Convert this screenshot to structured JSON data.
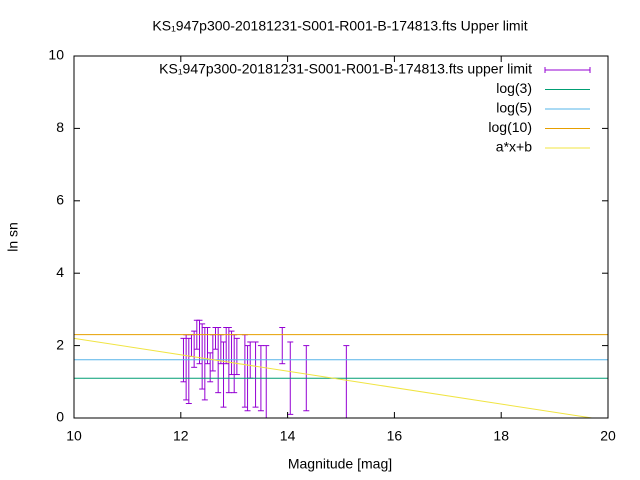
{
  "chart_data": {
    "type": "errorbar",
    "title": "KS₁947p300-20181231-S001-R001-B-174813.fts Upper limit",
    "xlabel": "Magnitude [mag]",
    "ylabel": "ln sn",
    "xlim": [
      10,
      20
    ],
    "xticks": [
      10,
      12,
      14,
      16,
      18,
      20
    ],
    "ylim": [
      0,
      10
    ],
    "yticks": [
      0,
      2,
      4,
      6,
      8,
      10
    ],
    "legend": "top-right",
    "series": [
      {
        "name": "KS₁947p300-20181231-S001-R001-B-174813.fts upper limit",
        "color": "#9400d3",
        "style": "errorbar",
        "x": [
          12.05,
          12.1,
          12.15,
          12.2,
          12.25,
          12.3,
          12.35,
          12.4,
          12.45,
          12.5,
          12.55,
          12.6,
          12.65,
          12.7,
          12.75,
          12.8,
          12.85,
          12.9,
          12.95,
          13.0,
          13.05,
          13.2,
          13.25,
          13.3,
          13.4,
          13.5,
          13.6,
          13.9,
          14.05,
          14.35,
          15.1
        ],
        "values": [
          1.6,
          1.4,
          1.3,
          2.0,
          1.9,
          2.3,
          2.1,
          1.7,
          1.5,
          2.0,
          1.4,
          1.8,
          2.2,
          1.6,
          1.9,
          1.2,
          2.0,
          1.6,
          1.8,
          1.5,
          1.7,
          1.3,
          1.1,
          1.6,
          1.2,
          1.1,
          1.0,
          2.0,
          1.1,
          1.1,
          1.0
        ],
        "errors": [
          0.6,
          0.9,
          0.9,
          0.3,
          0.5,
          0.4,
          0.6,
          0.9,
          1.0,
          0.5,
          0.4,
          0.5,
          0.3,
          0.9,
          0.4,
          0.9,
          0.5,
          0.9,
          0.6,
          0.8,
          0.5,
          1.0,
          0.9,
          0.5,
          0.9,
          0.9,
          1.0,
          0.5,
          1.0,
          0.9,
          1.0
        ]
      },
      {
        "name": "log(3)",
        "color": "#009e73",
        "style": "line",
        "x": [
          10,
          20
        ],
        "values": [
          1.0986,
          1.0986
        ]
      },
      {
        "name": "log(5)",
        "color": "#56b4e9",
        "style": "line",
        "x": [
          10,
          20
        ],
        "values": [
          1.6094,
          1.6094
        ]
      },
      {
        "name": "log(10)",
        "color": "#e69f00",
        "style": "line",
        "x": [
          10,
          20
        ],
        "values": [
          2.3026,
          2.3026
        ]
      },
      {
        "name": "a*x+b",
        "color": "#f0e442",
        "style": "line",
        "x": [
          10,
          19.7
        ],
        "values": [
          2.2,
          0
        ]
      }
    ]
  }
}
